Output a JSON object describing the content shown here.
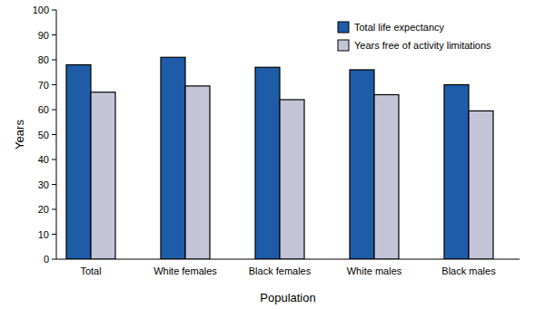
{
  "chart_data": {
    "type": "bar",
    "categories": [
      "Total",
      "White females",
      "Black females",
      "White males",
      "Black males"
    ],
    "series": [
      {
        "name": "Total life expectancy",
        "color": "#1f5ca8",
        "values": [
          78,
          81,
          77,
          76,
          70
        ]
      },
      {
        "name": "Years free of activity limitations",
        "color": "#c4c4d9",
        "values": [
          67,
          69.5,
          64,
          66,
          59.5
        ]
      }
    ],
    "x_label": "Population",
    "y_label": "Years",
    "ylim": [
      0,
      100
    ],
    "yticks": [
      0,
      10,
      20,
      30,
      40,
      50,
      60,
      70,
      80,
      90,
      100
    ],
    "grid": false,
    "legend": "top-right"
  }
}
